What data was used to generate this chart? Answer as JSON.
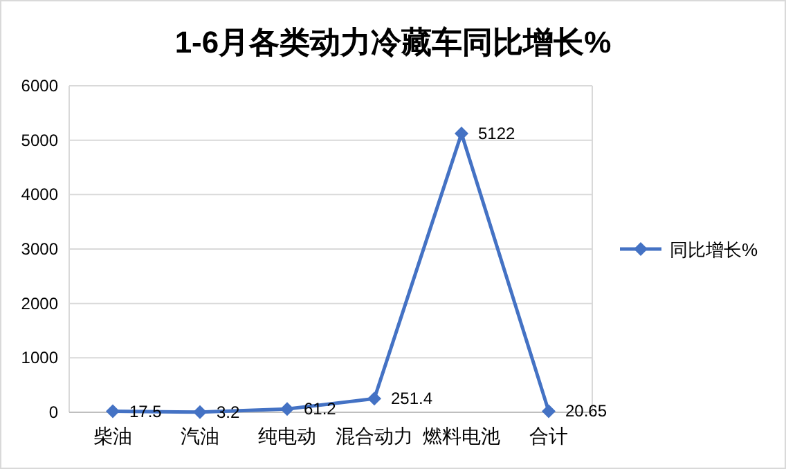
{
  "chart_data": {
    "type": "line",
    "title": "1-6月各类动力冷藏车同比增长%",
    "categories": [
      "柴油",
      "汽油",
      "纯电动",
      "混合动力",
      "燃料电池",
      "合计"
    ],
    "series": [
      {
        "name": "同比增长%",
        "color": "#4472c4",
        "values": [
          17.5,
          3.2,
          61.2,
          251.4,
          5122,
          20.65
        ]
      }
    ],
    "ylim": [
      0,
      6000
    ],
    "yticks": [
      0,
      1000,
      2000,
      3000,
      4000,
      5000,
      6000
    ],
    "grid": "y",
    "legend": "right",
    "marker": "diamond",
    "data_labels": true
  }
}
